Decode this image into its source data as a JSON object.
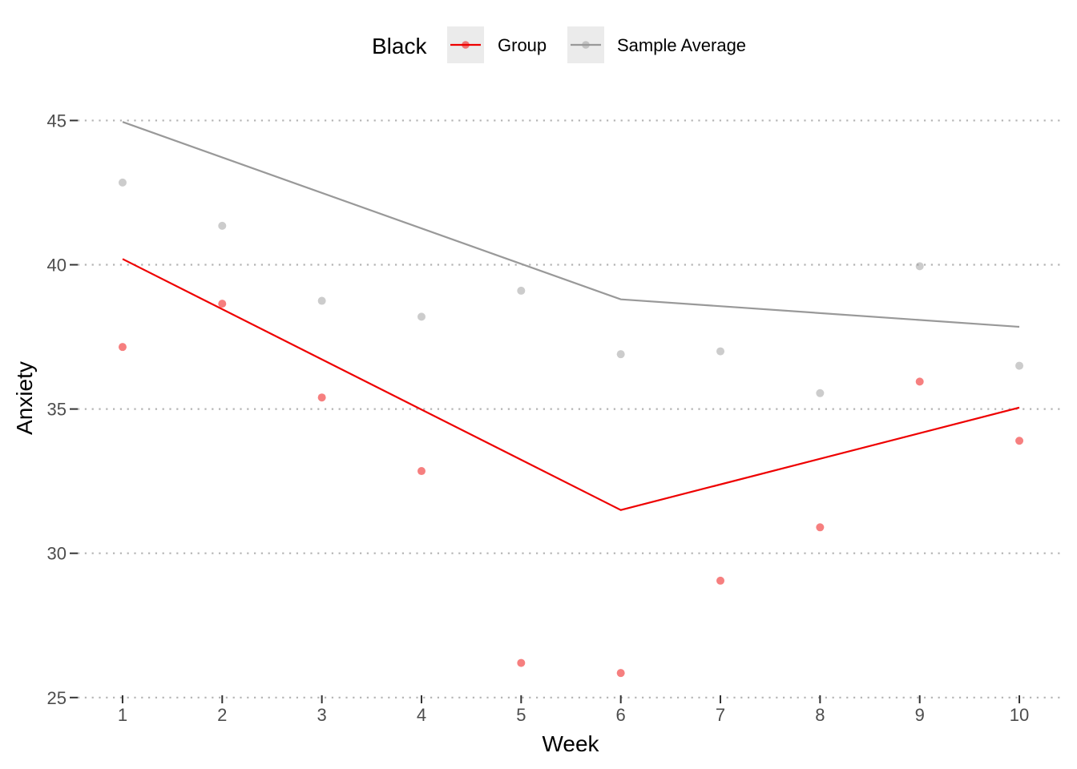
{
  "chart_data": {
    "type": "line",
    "xlabel": "Week",
    "ylabel": "Anxiety",
    "x": [
      1,
      2,
      3,
      4,
      5,
      6,
      7,
      8,
      9,
      10
    ],
    "xlim": [
      0.55,
      10.45
    ],
    "ylim": [
      24.8,
      46.4
    ],
    "y_ticks": [
      25,
      30,
      35,
      40,
      45
    ],
    "grid": "horizontal dotted",
    "legend": {
      "title": "Black",
      "position": "top",
      "entries": [
        "Group",
        "Sample Average"
      ]
    },
    "series": [
      {
        "name": "Group",
        "color": "#ee0000",
        "line_x": [
          1,
          6,
          10
        ],
        "line_y": [
          40.2,
          31.5,
          35.05
        ],
        "points": [
          37.15,
          38.65,
          35.4,
          32.85,
          26.2,
          25.85,
          29.05,
          30.9,
          35.95,
          33.9
        ]
      },
      {
        "name": "Sample Average",
        "color": "#999999",
        "line_x": [
          1,
          6,
          10
        ],
        "line_y": [
          44.95,
          38.8,
          37.85
        ],
        "points": [
          42.85,
          41.35,
          38.75,
          38.2,
          39.1,
          36.9,
          37.0,
          35.55,
          39.95,
          36.5
        ]
      }
    ]
  }
}
